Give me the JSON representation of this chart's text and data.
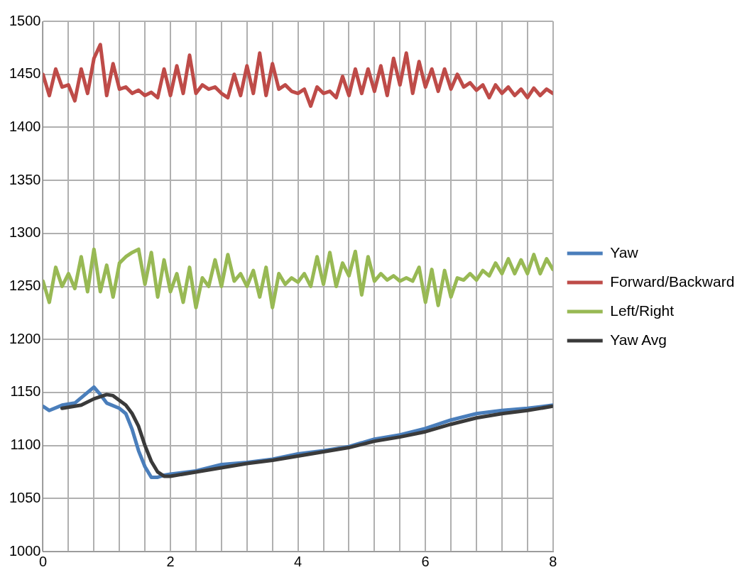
{
  "chart_data": {
    "type": "line",
    "xlim": [
      0,
      8
    ],
    "ylim": [
      1000,
      1500
    ],
    "xticks": [
      0,
      {
        "value": 0.4,
        "label": null
      },
      {
        "value": 0.8,
        "label": null
      },
      {
        "value": 1.2,
        "label": null
      },
      {
        "value": 1.6,
        "label": null
      },
      2,
      {
        "value": 2.4,
        "label": null
      },
      {
        "value": 2.8,
        "label": null
      },
      {
        "value": 3.2,
        "label": null
      },
      {
        "value": 3.6,
        "label": null
      },
      4,
      {
        "value": 4.4,
        "label": null
      },
      {
        "value": 4.8,
        "label": null
      },
      {
        "value": 5.2,
        "label": null
      },
      {
        "value": 5.6,
        "label": null
      },
      6,
      {
        "value": 6.4,
        "label": null
      },
      {
        "value": 6.8,
        "label": null
      },
      {
        "value": 7.2,
        "label": null
      },
      {
        "value": 7.6,
        "label": null
      },
      8
    ],
    "yticks": [
      1000,
      1050,
      1100,
      1150,
      1200,
      1250,
      1300,
      1350,
      1400,
      1450,
      1500
    ],
    "grid": true,
    "legend": "right",
    "marker": "none",
    "line_style": "solid",
    "series": [
      {
        "name": "Yaw",
        "color": "#4a7ebb",
        "x": [
          0,
          0.1,
          0.3,
          0.5,
          0.7,
          0.8,
          0.9,
          1.0,
          1.2,
          1.3,
          1.4,
          1.5,
          1.6,
          1.7,
          1.8,
          1.9,
          2.0,
          2.4,
          2.8,
          3.2,
          3.6,
          4.0,
          4.4,
          4.8,
          5.2,
          5.6,
          6.0,
          6.4,
          6.8,
          7.2,
          7.6,
          8.0
        ],
        "values": [
          1137,
          1133,
          1138,
          1140,
          1150,
          1155,
          1148,
          1140,
          1135,
          1130,
          1115,
          1095,
          1080,
          1070,
          1070,
          1072,
          1073,
          1076,
          1082,
          1084,
          1087,
          1092,
          1095,
          1099,
          1106,
          1110,
          1116,
          1124,
          1130,
          1133,
          1135,
          1138
        ]
      },
      {
        "name": "Forward/Backward",
        "color": "#be4b48",
        "x": [
          0,
          0.1,
          0.2,
          0.3,
          0.4,
          0.5,
          0.6,
          0.7,
          0.8,
          0.9,
          1.0,
          1.1,
          1.2,
          1.3,
          1.4,
          1.5,
          1.6,
          1.7,
          1.8,
          1.9,
          2.0,
          2.1,
          2.2,
          2.3,
          2.4,
          2.5,
          2.6,
          2.7,
          2.8,
          2.9,
          3.0,
          3.1,
          3.2,
          3.3,
          3.4,
          3.5,
          3.6,
          3.7,
          3.8,
          3.9,
          4.0,
          4.1,
          4.2,
          4.3,
          4.4,
          4.5,
          4.6,
          4.7,
          4.8,
          4.9,
          5.0,
          5.1,
          5.2,
          5.3,
          5.4,
          5.5,
          5.6,
          5.7,
          5.8,
          5.9,
          6.0,
          6.1,
          6.2,
          6.3,
          6.4,
          6.5,
          6.6,
          6.7,
          6.8,
          6.9,
          7.0,
          7.1,
          7.2,
          7.3,
          7.4,
          7.5,
          7.6,
          7.7,
          7.8,
          7.9,
          8.0
        ],
        "values": [
          1450,
          1430,
          1455,
          1438,
          1440,
          1425,
          1455,
          1432,
          1465,
          1478,
          1430,
          1460,
          1436,
          1438,
          1432,
          1435,
          1430,
          1433,
          1428,
          1455,
          1430,
          1458,
          1432,
          1468,
          1432,
          1440,
          1436,
          1438,
          1432,
          1428,
          1450,
          1430,
          1458,
          1432,
          1470,
          1430,
          1460,
          1436,
          1440,
          1434,
          1432,
          1436,
          1420,
          1438,
          1432,
          1434,
          1428,
          1448,
          1430,
          1455,
          1432,
          1455,
          1434,
          1458,
          1430,
          1465,
          1440,
          1470,
          1432,
          1462,
          1438,
          1455,
          1434,
          1455,
          1436,
          1450,
          1438,
          1442,
          1435,
          1440,
          1428,
          1440,
          1432,
          1438,
          1430,
          1436,
          1428,
          1437,
          1430,
          1436,
          1432
        ]
      },
      {
        "name": "Left/Right",
        "color": "#98b954",
        "x": [
          0,
          0.1,
          0.2,
          0.3,
          0.4,
          0.5,
          0.6,
          0.7,
          0.8,
          0.9,
          1.0,
          1.1,
          1.2,
          1.3,
          1.4,
          1.5,
          1.6,
          1.7,
          1.8,
          1.9,
          2.0,
          2.1,
          2.2,
          2.3,
          2.4,
          2.5,
          2.6,
          2.7,
          2.8,
          2.9,
          3.0,
          3.1,
          3.2,
          3.3,
          3.4,
          3.5,
          3.6,
          3.7,
          3.8,
          3.9,
          4.0,
          4.1,
          4.2,
          4.3,
          4.4,
          4.5,
          4.6,
          4.7,
          4.8,
          4.9,
          5.0,
          5.1,
          5.2,
          5.3,
          5.4,
          5.5,
          5.6,
          5.7,
          5.8,
          5.9,
          6.0,
          6.1,
          6.2,
          6.3,
          6.4,
          6.5,
          6.6,
          6.7,
          6.8,
          6.9,
          7.0,
          7.1,
          7.2,
          7.3,
          7.4,
          7.5,
          7.6,
          7.7,
          7.8,
          7.9,
          8.0
        ],
        "values": [
          1255,
          1235,
          1268,
          1250,
          1262,
          1248,
          1278,
          1245,
          1285,
          1245,
          1270,
          1240,
          1272,
          1278,
          1282,
          1285,
          1252,
          1282,
          1240,
          1275,
          1245,
          1262,
          1235,
          1268,
          1230,
          1258,
          1250,
          1275,
          1250,
          1280,
          1255,
          1262,
          1250,
          1265,
          1240,
          1268,
          1230,
          1262,
          1252,
          1258,
          1254,
          1262,
          1250,
          1278,
          1252,
          1282,
          1250,
          1272,
          1260,
          1283,
          1242,
          1278,
          1255,
          1262,
          1256,
          1260,
          1255,
          1258,
          1255,
          1268,
          1235,
          1266,
          1232,
          1265,
          1240,
          1258,
          1256,
          1262,
          1256,
          1265,
          1260,
          1272,
          1262,
          1276,
          1262,
          1275,
          1262,
          1280,
          1262,
          1276,
          1266
        ]
      },
      {
        "name": "Yaw Avg",
        "color": "#3a3a3a",
        "x": [
          0.3,
          0.6,
          0.8,
          1.0,
          1.1,
          1.3,
          1.4,
          1.5,
          1.6,
          1.7,
          1.8,
          1.9,
          2.0,
          2.4,
          2.8,
          3.2,
          3.6,
          4.0,
          4.4,
          4.8,
          5.2,
          5.6,
          6.0,
          6.4,
          6.8,
          7.2,
          7.6,
          8.0
        ],
        "values": [
          1135,
          1138,
          1144,
          1148,
          1147,
          1138,
          1130,
          1118,
          1100,
          1085,
          1075,
          1071,
          1071,
          1075,
          1079,
          1083,
          1086,
          1090,
          1094,
          1098,
          1104,
          1108,
          1113,
          1120,
          1126,
          1130,
          1133,
          1137
        ]
      }
    ]
  }
}
